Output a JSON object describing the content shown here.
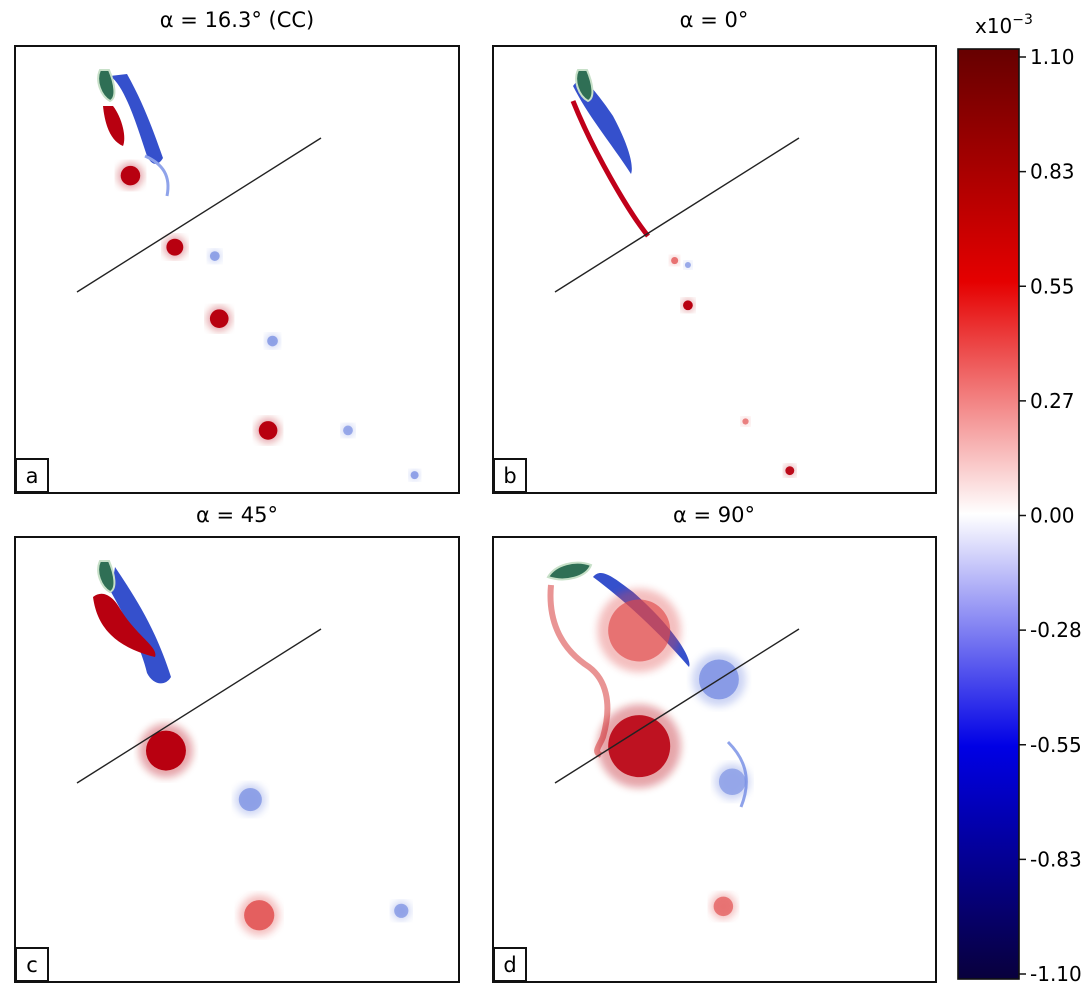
{
  "chart_data": {
    "type": "heatmap",
    "panels": [
      {
        "letter": "a",
        "title_alpha": "α = 16.3° (CC)",
        "vortices": [
          {
            "x": 0.26,
            "y": 0.29,
            "r": 0.022,
            "sign": 1,
            "strength": 1.0
          },
          {
            "x": 0.36,
            "y": 0.45,
            "r": 0.019,
            "sign": 1,
            "strength": 1.0
          },
          {
            "x": 0.45,
            "y": 0.47,
            "r": 0.011,
            "sign": -1,
            "strength": 0.45
          },
          {
            "x": 0.46,
            "y": 0.61,
            "r": 0.021,
            "sign": 1,
            "strength": 1.0
          },
          {
            "x": 0.58,
            "y": 0.66,
            "r": 0.012,
            "sign": -1,
            "strength": 0.45
          },
          {
            "x": 0.57,
            "y": 0.86,
            "r": 0.021,
            "sign": 1,
            "strength": 1.0
          },
          {
            "x": 0.75,
            "y": 0.86,
            "r": 0.011,
            "sign": -1,
            "strength": 0.35
          },
          {
            "x": 0.9,
            "y": 0.96,
            "r": 0.009,
            "sign": -1,
            "strength": 0.5
          }
        ]
      },
      {
        "letter": "b",
        "title_alpha": "α = 0°",
        "vortices": [
          {
            "x": 0.41,
            "y": 0.48,
            "r": 0.008,
            "sign": 1,
            "strength": 0.5
          },
          {
            "x": 0.44,
            "y": 0.49,
            "r": 0.006,
            "sign": -1,
            "strength": 0.4
          },
          {
            "x": 0.44,
            "y": 0.58,
            "r": 0.011,
            "sign": 1,
            "strength": 1.0
          },
          {
            "x": 0.57,
            "y": 0.84,
            "r": 0.007,
            "sign": 1,
            "strength": 0.35
          },
          {
            "x": 0.67,
            "y": 0.95,
            "r": 0.01,
            "sign": 1,
            "strength": 0.9
          }
        ]
      },
      {
        "letter": "c",
        "title_alpha": "α = 45°",
        "vortices": [
          {
            "x": 0.34,
            "y": 0.48,
            "r": 0.045,
            "sign": 1,
            "strength": 1.0
          },
          {
            "x": 0.53,
            "y": 0.59,
            "r": 0.026,
            "sign": -1,
            "strength": 0.4
          },
          {
            "x": 0.55,
            "y": 0.85,
            "r": 0.034,
            "sign": 1,
            "strength": 0.65
          },
          {
            "x": 0.87,
            "y": 0.84,
            "r": 0.016,
            "sign": -1,
            "strength": 0.35
          }
        ]
      },
      {
        "letter": "d",
        "title_alpha": "α = 90°",
        "vortices": [
          {
            "x": 0.33,
            "y": 0.47,
            "r": 0.07,
            "sign": 1,
            "strength": 0.8
          },
          {
            "x": 0.33,
            "y": 0.21,
            "r": 0.07,
            "sign": 1,
            "strength": 0.35
          },
          {
            "x": 0.51,
            "y": 0.32,
            "r": 0.045,
            "sign": -1,
            "strength": 0.5
          },
          {
            "x": 0.54,
            "y": 0.55,
            "r": 0.03,
            "sign": -1,
            "strength": 0.25
          },
          {
            "x": 0.52,
            "y": 0.83,
            "r": 0.022,
            "sign": 1,
            "strength": 0.35
          }
        ]
      }
    ],
    "colorbar": {
      "exponent_label": "x10",
      "exponent_sup": "−3",
      "ticks": [
        "1.10",
        "0.83",
        "0.55",
        "0.27",
        "0.00",
        "-0.28",
        "-0.55",
        "-0.83",
        "-1.10"
      ],
      "range": [
        -1.1,
        1.1
      ],
      "colors": [
        "#08003c",
        "#0000e5",
        "#ffffff",
        "#e50000",
        "#660000"
      ]
    }
  }
}
